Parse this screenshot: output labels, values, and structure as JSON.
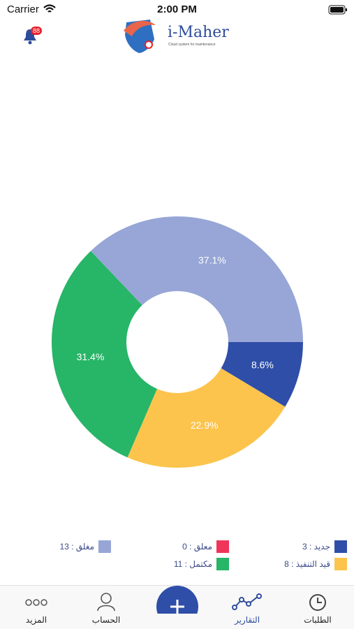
{
  "status_bar": {
    "carrier": "Carrier",
    "time": "2:00 PM"
  },
  "header": {
    "notification_count": "88",
    "brand": "i-Maher",
    "tagline": "Cloud system for maintenance"
  },
  "chart_data": {
    "type": "pie",
    "categories": [
      "جديد : 3",
      "قيد التنفيذ : 8",
      "مكتمل : 11",
      "مغلق : 13",
      "معلق : 0"
    ],
    "values": [
      8.6,
      22.9,
      31.4,
      37.1,
      0
    ],
    "value_labels": [
      "8.6%",
      "22.9%",
      "31.4%",
      "37.1%",
      null
    ],
    "colors": [
      "#2f4ea8",
      "#fcc44d",
      "#27b567",
      "#97a6d6",
      "#f0355a"
    ],
    "donut": true
  },
  "tabs": [
    "الطلبات",
    "التقارير",
    "الحساب",
    "المزيد"
  ]
}
